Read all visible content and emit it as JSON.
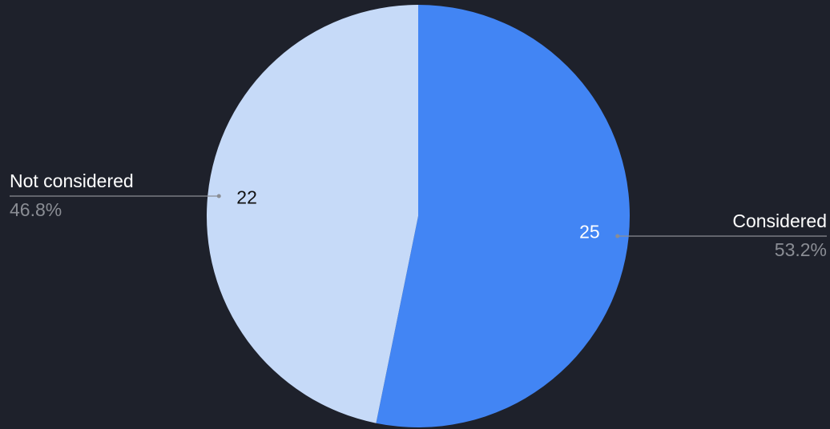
{
  "chart_data": {
    "type": "pie",
    "categories": [
      "Considered",
      "Not considered"
    ],
    "values": [
      25,
      22
    ],
    "percent_labels": [
      "53.2%",
      "46.8%"
    ],
    "colors": [
      "#4285f4",
      "#c6daf8"
    ],
    "start_angle": 0,
    "direction": "clockwise"
  }
}
